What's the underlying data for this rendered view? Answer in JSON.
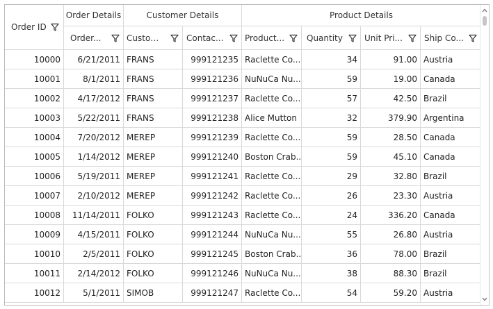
{
  "headers": {
    "order_id": "Order ID",
    "groups": {
      "order_details": "Order Details",
      "customer_details": "Customer Details",
      "product_details": "Product Details"
    },
    "columns": [
      "Order...",
      "Custom...",
      "Contac...",
      "Product...",
      "Quantity",
      "Unit Pri...",
      "Ship Co..."
    ]
  },
  "rows": [
    {
      "order_id": "10000",
      "order_date": "6/21/2011",
      "customer": "FRANS",
      "contact": "999121235",
      "product": "Raclette  Co...",
      "quantity": "34",
      "unit_price": "91.00",
      "ship_country": "Austria"
    },
    {
      "order_id": "10001",
      "order_date": "8/1/2011",
      "customer": "FRANS",
      "contact": "999121236",
      "product": "NuNuCa  Nu...",
      "quantity": "59",
      "unit_price": "19.00",
      "ship_country": "Canada"
    },
    {
      "order_id": "10002",
      "order_date": "4/17/2012",
      "customer": "FRANS",
      "contact": "999121237",
      "product": "Raclette  Co...",
      "quantity": "57",
      "unit_price": "42.50",
      "ship_country": "Brazil"
    },
    {
      "order_id": "10003",
      "order_date": "5/22/2011",
      "customer": "FRANS",
      "contact": "999121238",
      "product": "Alice Mutton",
      "quantity": "32",
      "unit_price": "379.90",
      "ship_country": "Argentina"
    },
    {
      "order_id": "10004",
      "order_date": "7/20/2012",
      "customer": "MEREP",
      "contact": "999121239",
      "product": "Raclette  Co...",
      "quantity": "59",
      "unit_price": "28.50",
      "ship_country": "Canada"
    },
    {
      "order_id": "10005",
      "order_date": "1/14/2012",
      "customer": "MEREP",
      "contact": "999121240",
      "product": "Boston  Crab...",
      "quantity": "59",
      "unit_price": "45.10",
      "ship_country": "Canada"
    },
    {
      "order_id": "10006",
      "order_date": "5/19/2011",
      "customer": "MEREP",
      "contact": "999121241",
      "product": "Raclette  Co...",
      "quantity": "29",
      "unit_price": "32.80",
      "ship_country": "Brazil"
    },
    {
      "order_id": "10007",
      "order_date": "2/10/2012",
      "customer": "MEREP",
      "contact": "999121242",
      "product": "Raclette  Co...",
      "quantity": "26",
      "unit_price": "23.30",
      "ship_country": "Austria"
    },
    {
      "order_id": "10008",
      "order_date": "11/14/2011",
      "customer": "FOLKO",
      "contact": "999121243",
      "product": "Raclette  Co...",
      "quantity": "24",
      "unit_price": "336.20",
      "ship_country": "Canada"
    },
    {
      "order_id": "10009",
      "order_date": "4/15/2011",
      "customer": "FOLKO",
      "contact": "999121244",
      "product": "NuNuCa  Nu...",
      "quantity": "55",
      "unit_price": "26.80",
      "ship_country": "Austria"
    },
    {
      "order_id": "10010",
      "order_date": "2/5/2011",
      "customer": "FOLKO",
      "contact": "999121245",
      "product": "Boston  Crab...",
      "quantity": "36",
      "unit_price": "78.00",
      "ship_country": "Brazil"
    },
    {
      "order_id": "10011",
      "order_date": "2/14/2012",
      "customer": "FOLKO",
      "contact": "999121246",
      "product": "NuNuCa  Nu...",
      "quantity": "38",
      "unit_price": "88.30",
      "ship_country": "Brazil"
    },
    {
      "order_id": "10012",
      "order_date": "5/1/2011",
      "customer": "SIMOB",
      "contact": "999121247",
      "product": "Raclette  Co...",
      "quantity": "54",
      "unit_price": "59.20",
      "ship_country": "Austria"
    }
  ],
  "icons": {
    "filter": "filter-icon",
    "scroll_up": "scroll-up-arrow-icon",
    "scroll_down": "scroll-down-arrow-icon"
  },
  "colors": {
    "border": "#d9d9d9",
    "outer_border": "#bdbdbd",
    "text": "#222222",
    "scroll_thumb": "#c6c6c6"
  }
}
